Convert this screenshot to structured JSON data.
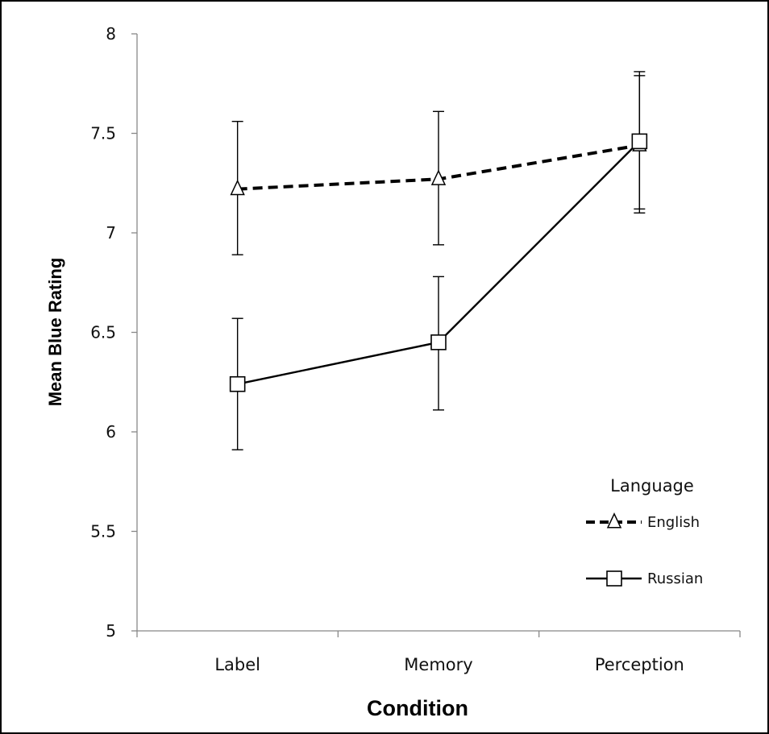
{
  "chart_data": {
    "type": "line",
    "xlabel": "Condition",
    "ylabel": "Mean Blue Rating",
    "categories": [
      "Label",
      "Memory",
      "Perception"
    ],
    "ylim": [
      5,
      8
    ],
    "yticks": [
      "5",
      "5.5",
      "6",
      "6.5",
      "7",
      "7.5",
      "8"
    ],
    "legend": {
      "title": "Language",
      "position": "lower-right"
    },
    "series": [
      {
        "name": "English",
        "style": "dashed",
        "marker": "triangle",
        "values": [
          7.22,
          7.27,
          7.44
        ],
        "err_low": [
          6.89,
          6.94,
          7.12
        ],
        "err_high": [
          7.56,
          7.61,
          7.81
        ]
      },
      {
        "name": "Russian",
        "style": "solid",
        "marker": "square",
        "values": [
          6.24,
          6.45,
          7.46
        ],
        "err_low": [
          5.91,
          6.11,
          7.1
        ],
        "err_high": [
          6.57,
          6.78,
          7.79
        ]
      }
    ],
    "grid": false,
    "colors": {
      "line": "#000000",
      "marker_fill": "#ffffff"
    }
  }
}
